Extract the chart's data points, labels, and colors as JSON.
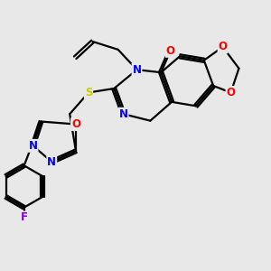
{
  "bg_color": "#e8e8e8",
  "atom_colors": {
    "N": "#0000ff",
    "O": "#ff0000",
    "S": "#cccc00",
    "F": "#8800cc",
    "C": "#000000"
  },
  "bond_color": "#000000",
  "bond_width": 1.6,
  "figsize": [
    3.0,
    3.0
  ],
  "dpi": 100
}
